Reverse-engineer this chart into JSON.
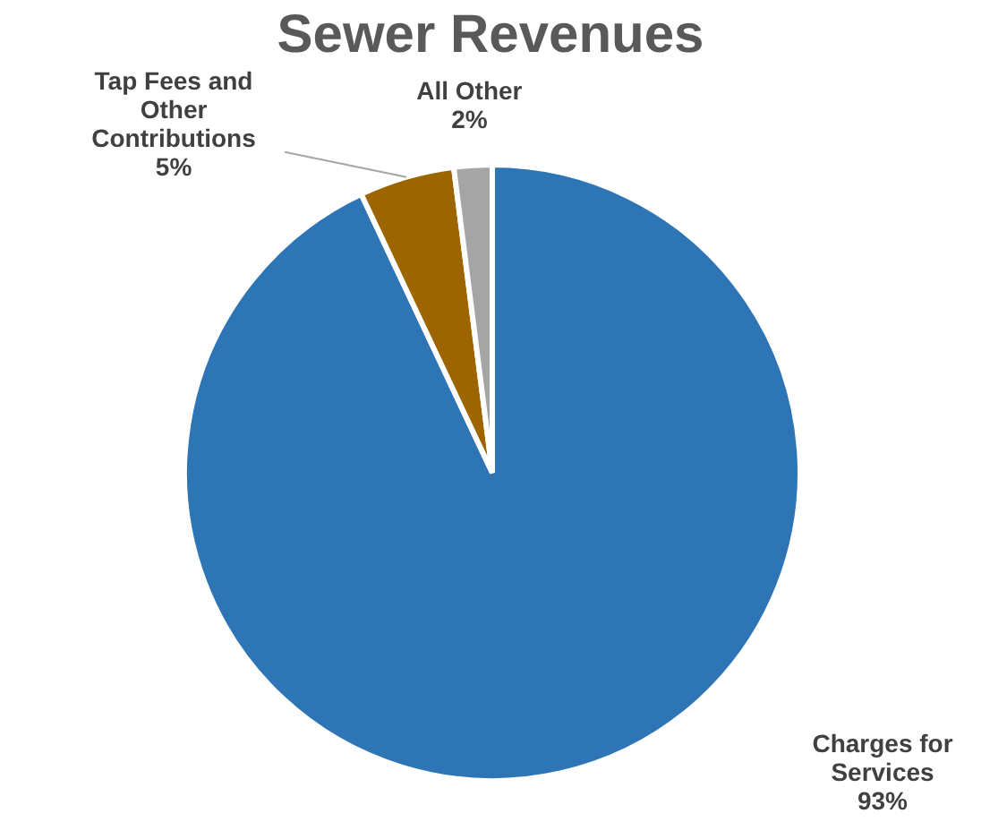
{
  "chart_data": {
    "type": "pie",
    "title": "Sewer Revenues",
    "categories": [
      "Charges for Services",
      "Tap Fees and Other Contributions",
      "All Other"
    ],
    "values": [
      93,
      5,
      2
    ],
    "value_labels": [
      "93%",
      "5%",
      "2%"
    ],
    "colors": [
      "#2e75b6",
      "#9c6500",
      "#a5a5a5"
    ],
    "legend": false
  }
}
